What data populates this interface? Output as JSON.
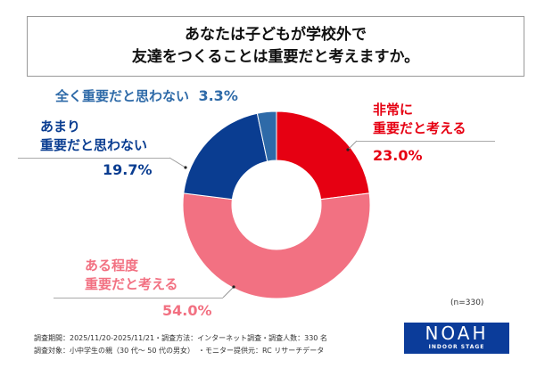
{
  "title": {
    "line1": "あなたは子どもが学校外で",
    "line2": "友達をつくることは重要だと考えますか。"
  },
  "chart_data": {
    "type": "pie",
    "donut": true,
    "categories": [
      "非常に重要だと考える",
      "ある程度重要だと考える",
      "あまり重要だと思わない",
      "全く重要だと思わない"
    ],
    "values": [
      23.0,
      54.0,
      19.7,
      3.3
    ],
    "colors": [
      "#e60012",
      "#f27182",
      "#0a3d91",
      "#2e6aa8"
    ],
    "labels": [
      {
        "line1": "非常に",
        "line2": "重要だと考える",
        "pct": "23.0%"
      },
      {
        "line1": "ある程度",
        "line2": "重要だと考える",
        "pct": "54.0%"
      },
      {
        "line1": "あまり",
        "line2": "重要だと思わない",
        "pct": "19.7%"
      },
      {
        "line1": "全く重要だと思わない",
        "pct": "3.3%"
      }
    ]
  },
  "n": "(n=330)",
  "footer": {
    "line1": "調査期間：2025/11/20-2025/11/21・調査方法：インターネット調査・調査人数：330 名",
    "line2": "調査対象：小中学生の親（30 代～ 50 代の男女）　・モニター提供元：RC リサーチデータ"
  },
  "logo": {
    "main": "NOAH",
    "sub": "INDOOR STAGE"
  }
}
